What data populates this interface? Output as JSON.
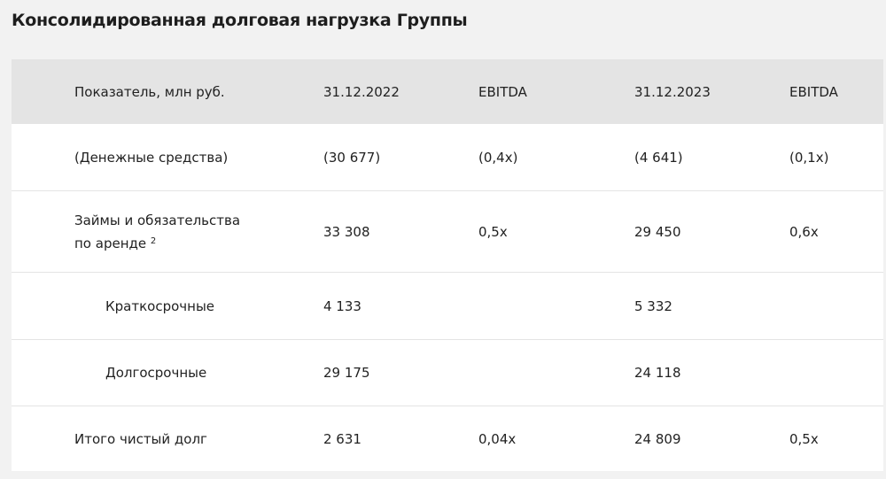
{
  "header": {
    "title": "Консолидированная долговая нагрузка Группы"
  },
  "table": {
    "columns": [
      "Показатель, млн руб.",
      "31.12.2022",
      "EBITDA",
      "31.12.2023",
      "EBITDA"
    ],
    "rows": [
      {
        "label": "(Денежные средства)",
        "cells": [
          "(30 677)",
          "(0,4x)",
          "(4 641)",
          "(0,1x)"
        ]
      },
      {
        "label": "Займы и обязательства по аренде",
        "note": "2",
        "cells": [
          "33 308",
          "0,5x",
          "29 450",
          "0,6x"
        ]
      },
      {
        "label": "Краткосрочные",
        "cells": [
          "4 133",
          null,
          "5 332",
          null
        ]
      },
      {
        "label": "Долгосрочные",
        "cells": [
          "29 175",
          null,
          "24 118",
          null
        ]
      },
      {
        "label": "Итого чистый долг",
        "cells": [
          "2 631",
          "0,04x",
          "24 809",
          "0,5x"
        ]
      }
    ]
  }
}
